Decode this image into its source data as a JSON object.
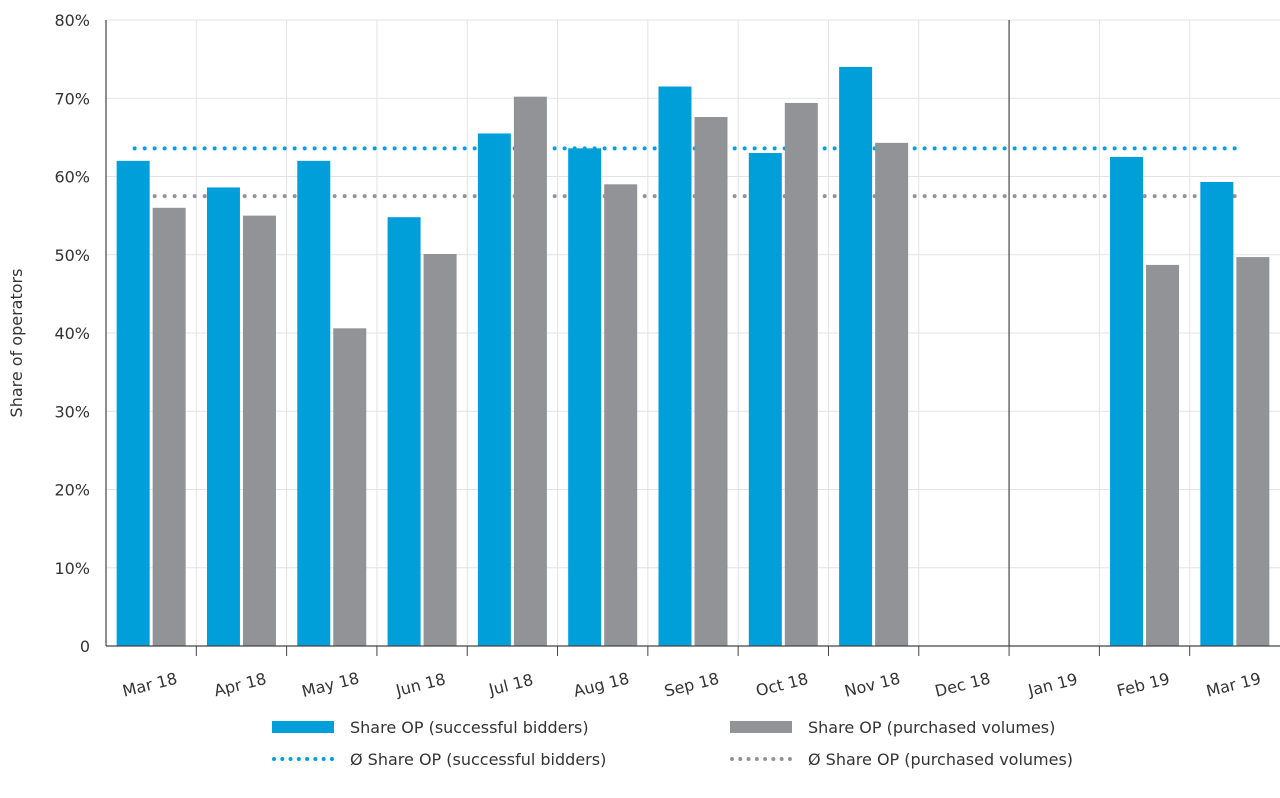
{
  "chart_data": {
    "type": "bar",
    "title": "",
    "ylabel": "Share of operators",
    "ylim": [
      0,
      80
    ],
    "yticks": [
      "0",
      "10%",
      "20%",
      "30%",
      "40%",
      "50%",
      "60%",
      "70%",
      "80%"
    ],
    "categories": [
      "Mar 18",
      "Apr 18",
      "May 18",
      "Jun 18",
      "Jul 18",
      "Aug 18",
      "Sep 18",
      "Oct 18",
      "Nov 18",
      "Dec 18",
      "Jan 19",
      "Feb 19",
      "Mar 19"
    ],
    "series": [
      {
        "name": "Share OP (successful bidders)",
        "color": "#009fda",
        "values": [
          62,
          58.6,
          62,
          54.8,
          65.5,
          63.6,
          71.5,
          63,
          74,
          null,
          null,
          62.5,
          59.3
        ]
      },
      {
        "name": "Share OP (purchased volumes)",
        "color": "#929396",
        "values": [
          56,
          55,
          40.6,
          50.1,
          70.2,
          59,
          67.6,
          69.4,
          64.3,
          null,
          null,
          48.7,
          49.7
        ]
      }
    ],
    "averages": [
      {
        "name": "Ø Share OP (successful bidders)",
        "color": "#009fda",
        "value": 63.6
      },
      {
        "name": "Ø Share OP (purchased volumes)",
        "color": "#929396",
        "value": 57.5
      }
    ],
    "separator_after": "Dec 18",
    "grid": true,
    "legend_position": "bottom"
  }
}
